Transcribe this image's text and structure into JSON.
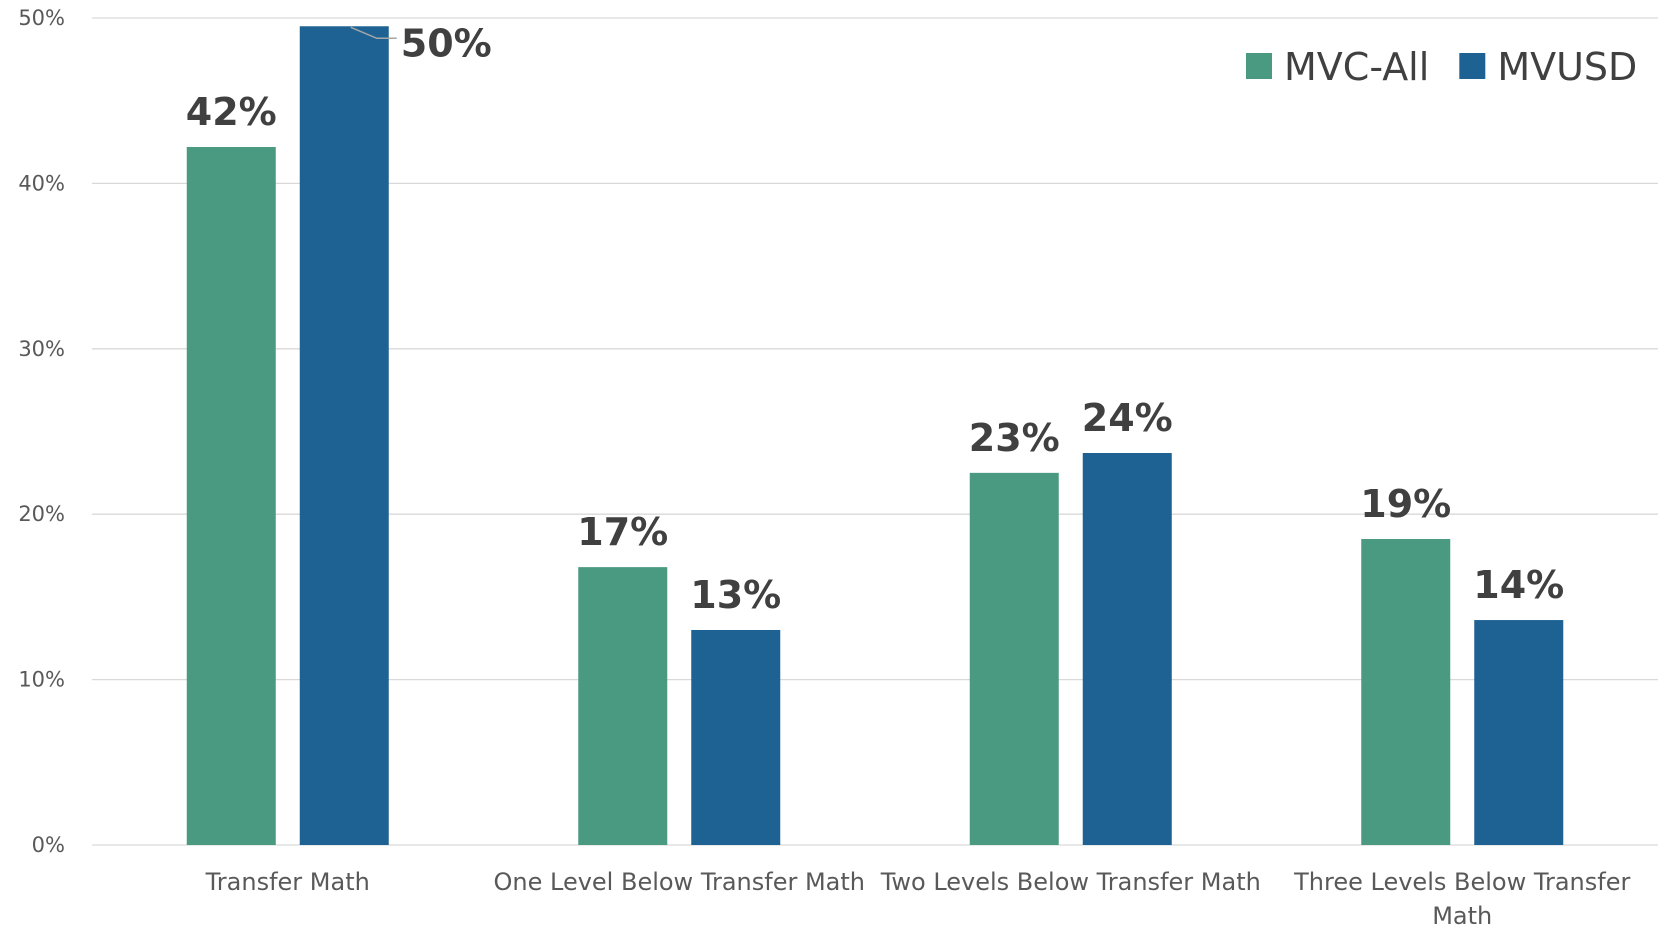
{
  "chart_data": {
    "type": "bar",
    "title": "",
    "xlabel": "",
    "ylabel": "",
    "categories": [
      [
        "Transfer Math"
      ],
      [
        "One Level Below Transfer Math"
      ],
      [
        "Two Levels Below Transfer Math"
      ],
      [
        "Three Levels Below Transfer",
        "Math"
      ]
    ],
    "series": [
      {
        "name": "MVC-All",
        "color": "#4a9a82",
        "values": [
          42.2,
          16.8,
          22.5,
          18.5
        ],
        "labels": [
          "42%",
          "17%",
          "23%",
          "19%"
        ]
      },
      {
        "name": "MVUSD",
        "color": "#1e6193",
        "values": [
          49.5,
          13.0,
          23.7,
          13.6
        ],
        "labels": [
          "50%",
          "13%",
          "24%",
          "14%"
        ]
      }
    ],
    "ylim": [
      0,
      50
    ],
    "yticks": [
      0,
      10,
      20,
      30,
      40,
      50
    ],
    "ytick_labels": [
      "0%",
      "10%",
      "20%",
      "30%",
      "40%",
      "50%"
    ],
    "grid": true,
    "legend": "top-right"
  }
}
